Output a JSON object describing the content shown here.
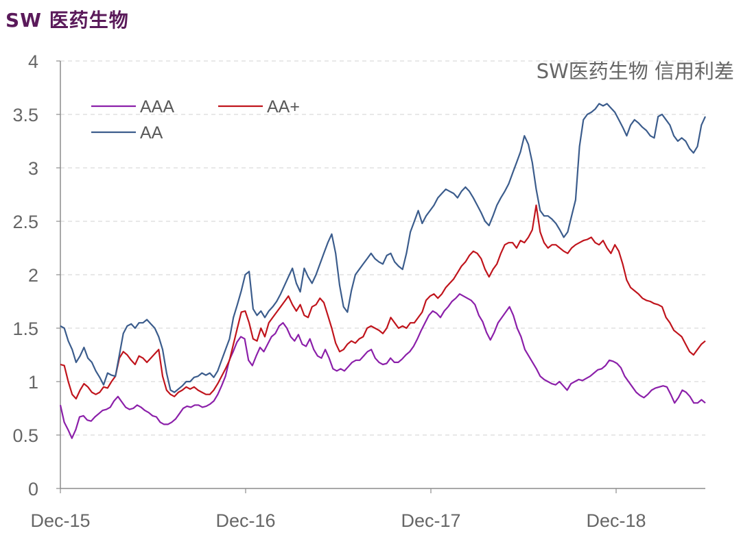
{
  "header": {
    "title": "SW 医药生物"
  },
  "chart_data": {
    "type": "line",
    "title": "SW医药生物 信用利差",
    "xlabel": "",
    "ylabel": "",
    "ylim": [
      0,
      4
    ],
    "yticks": [
      "0",
      "0.5",
      "1",
      "1.5",
      "2",
      "2.5",
      "3",
      "3.5",
      "4"
    ],
    "xticks": [
      "Dec-15",
      "Dec-16",
      "Dec-17",
      "Dec-18"
    ],
    "grid": "horizontal dashed",
    "legend": "top-left",
    "colors": {
      "AAA": "#8b1fa9",
      "AA+": "#c0141c",
      "AA": "#3b5c8c"
    },
    "series": [
      {
        "name": "AAA",
        "color": "#8b1fa9",
        "values": [
          0.78,
          0.62,
          0.55,
          0.47,
          0.55,
          0.67,
          0.68,
          0.64,
          0.63,
          0.67,
          0.7,
          0.73,
          0.74,
          0.76,
          0.82,
          0.86,
          0.81,
          0.76,
          0.74,
          0.75,
          0.78,
          0.76,
          0.73,
          0.71,
          0.68,
          0.67,
          0.62,
          0.6,
          0.6,
          0.62,
          0.65,
          0.7,
          0.75,
          0.77,
          0.76,
          0.78,
          0.78,
          0.76,
          0.77,
          0.79,
          0.82,
          0.88,
          0.96,
          1.05,
          1.2,
          1.28,
          1.37,
          1.42,
          1.4,
          1.2,
          1.15,
          1.24,
          1.32,
          1.28,
          1.35,
          1.42,
          1.45,
          1.52,
          1.55,
          1.5,
          1.42,
          1.38,
          1.44,
          1.35,
          1.33,
          1.4,
          1.3,
          1.24,
          1.22,
          1.3,
          1.22,
          1.12,
          1.1,
          1.12,
          1.1,
          1.14,
          1.18,
          1.2,
          1.2,
          1.24,
          1.28,
          1.3,
          1.22,
          1.18,
          1.16,
          1.17,
          1.22,
          1.18,
          1.18,
          1.21,
          1.25,
          1.28,
          1.33,
          1.4,
          1.48,
          1.55,
          1.62,
          1.66,
          1.64,
          1.6,
          1.66,
          1.7,
          1.75,
          1.78,
          1.82,
          1.8,
          1.78,
          1.76,
          1.72,
          1.62,
          1.56,
          1.46,
          1.39,
          1.46,
          1.55,
          1.6,
          1.65,
          1.7,
          1.62,
          1.5,
          1.42,
          1.3,
          1.24,
          1.18,
          1.12,
          1.05,
          1.02,
          1.0,
          0.98,
          0.97,
          1.0,
          0.96,
          0.92,
          0.98,
          1.0,
          1.02,
          1.01,
          1.03,
          1.05,
          1.08,
          1.11,
          1.12,
          1.15,
          1.2,
          1.19,
          1.17,
          1.13,
          1.05,
          1.0,
          0.95,
          0.9,
          0.87,
          0.85,
          0.88,
          0.92,
          0.94,
          0.95,
          0.96,
          0.95,
          0.88,
          0.8,
          0.85,
          0.92,
          0.9,
          0.86,
          0.8,
          0.8,
          0.83,
          0.8
        ]
      },
      {
        "name": "AA+",
        "color": "#c0141c",
        "values": [
          1.16,
          1.15,
          1.0,
          0.88,
          0.84,
          0.92,
          0.98,
          0.95,
          0.9,
          0.88,
          0.9,
          0.95,
          0.94,
          1.0,
          1.05,
          1.22,
          1.28,
          1.25,
          1.2,
          1.16,
          1.24,
          1.22,
          1.18,
          1.22,
          1.26,
          1.3,
          1.05,
          0.92,
          0.88,
          0.86,
          0.9,
          0.92,
          0.95,
          0.93,
          0.95,
          0.92,
          0.9,
          0.88,
          0.88,
          0.92,
          0.98,
          1.05,
          1.12,
          1.2,
          1.35,
          1.5,
          1.65,
          1.66,
          1.55,
          1.4,
          1.38,
          1.5,
          1.42,
          1.55,
          1.6,
          1.65,
          1.7,
          1.75,
          1.8,
          1.72,
          1.66,
          1.72,
          1.62,
          1.6,
          1.7,
          1.72,
          1.78,
          1.74,
          1.62,
          1.5,
          1.36,
          1.28,
          1.3,
          1.35,
          1.38,
          1.36,
          1.4,
          1.42,
          1.5,
          1.52,
          1.5,
          1.48,
          1.45,
          1.5,
          1.6,
          1.55,
          1.5,
          1.52,
          1.5,
          1.55,
          1.55,
          1.6,
          1.65,
          1.76,
          1.8,
          1.82,
          1.78,
          1.82,
          1.88,
          1.92,
          1.96,
          2.02,
          2.08,
          2.12,
          2.18,
          2.22,
          2.2,
          2.15,
          2.05,
          1.98,
          2.05,
          2.1,
          2.2,
          2.28,
          2.3,
          2.3,
          2.25,
          2.32,
          2.3,
          2.35,
          2.42,
          2.65,
          2.4,
          2.3,
          2.25,
          2.28,
          2.28,
          2.25,
          2.22,
          2.2,
          2.25,
          2.28,
          2.3,
          2.32,
          2.33,
          2.35,
          2.3,
          2.28,
          2.32,
          2.25,
          2.2,
          2.28,
          2.22,
          2.1,
          1.95,
          1.88,
          1.85,
          1.82,
          1.78,
          1.76,
          1.75,
          1.73,
          1.72,
          1.7,
          1.6,
          1.55,
          1.48,
          1.45,
          1.42,
          1.35,
          1.28,
          1.25,
          1.3,
          1.35,
          1.38
        ]
      },
      {
        "name": "AA",
        "color": "#3b5c8c",
        "values": [
          1.52,
          1.5,
          1.38,
          1.3,
          1.18,
          1.24,
          1.32,
          1.22,
          1.18,
          1.1,
          1.04,
          0.97,
          1.08,
          1.06,
          1.05,
          1.25,
          1.45,
          1.52,
          1.54,
          1.5,
          1.55,
          1.55,
          1.58,
          1.54,
          1.5,
          1.42,
          1.3,
          1.08,
          0.92,
          0.9,
          0.93,
          0.96,
          1.0,
          1.0,
          1.04,
          1.05,
          1.08,
          1.06,
          1.08,
          1.04,
          1.1,
          1.2,
          1.3,
          1.4,
          1.6,
          1.72,
          1.85,
          2.0,
          2.03,
          1.68,
          1.62,
          1.66,
          1.6,
          1.66,
          1.7,
          1.75,
          1.82,
          1.9,
          1.98,
          2.06,
          1.92,
          1.84,
          2.06,
          1.98,
          1.92,
          2.0,
          2.1,
          2.2,
          2.3,
          2.38,
          2.2,
          1.9,
          1.7,
          1.65,
          1.85,
          2.0,
          2.05,
          2.1,
          2.15,
          2.2,
          2.15,
          2.12,
          2.1,
          2.18,
          2.2,
          2.12,
          2.08,
          2.05,
          2.2,
          2.4,
          2.5,
          2.6,
          2.48,
          2.55,
          2.6,
          2.65,
          2.72,
          2.76,
          2.8,
          2.78,
          2.76,
          2.72,
          2.78,
          2.82,
          2.78,
          2.72,
          2.65,
          2.58,
          2.5,
          2.46,
          2.55,
          2.65,
          2.72,
          2.78,
          2.85,
          2.95,
          3.05,
          3.15,
          3.3,
          3.22,
          3.05,
          2.8,
          2.6,
          2.55,
          2.55,
          2.52,
          2.48,
          2.42,
          2.35,
          2.4,
          2.55,
          2.7,
          3.2,
          3.45,
          3.5,
          3.52,
          3.55,
          3.6,
          3.58,
          3.6,
          3.56,
          3.52,
          3.45,
          3.38,
          3.3,
          3.4,
          3.45,
          3.42,
          3.38,
          3.35,
          3.3,
          3.28,
          3.48,
          3.5,
          3.45,
          3.4,
          3.3,
          3.25,
          3.28,
          3.25,
          3.18,
          3.14,
          3.2,
          3.4,
          3.48
        ]
      }
    ]
  }
}
